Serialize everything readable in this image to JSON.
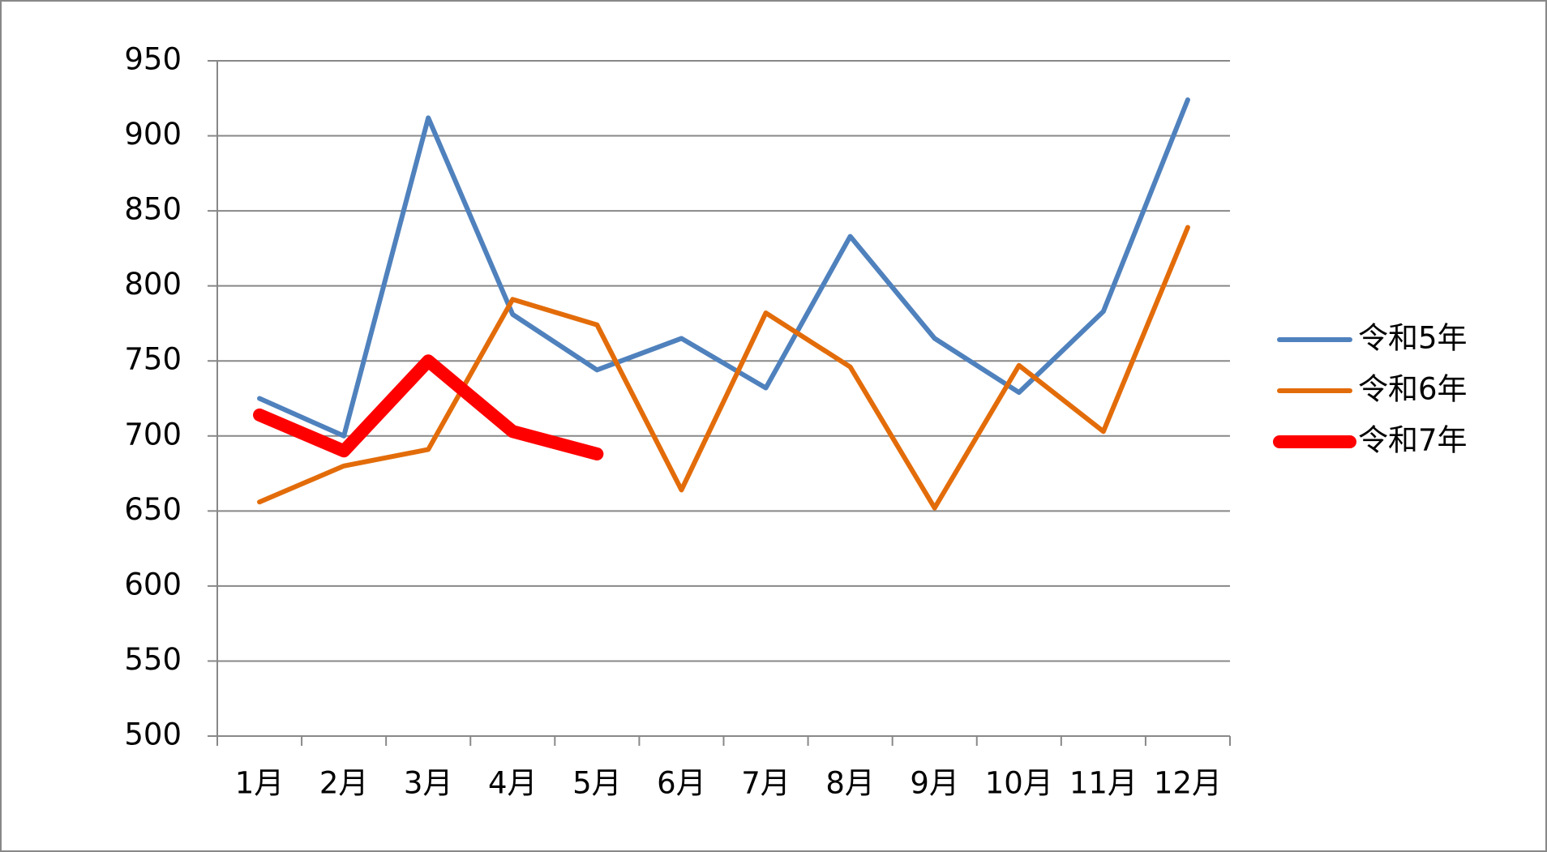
{
  "chart_data": {
    "type": "line",
    "categories": [
      "1月",
      "2月",
      "3月",
      "4月",
      "5月",
      "6月",
      "7月",
      "8月",
      "9月",
      "10月",
      "11月",
      "12月"
    ],
    "series": [
      {
        "name": "令和5年",
        "color": "#4f81bd",
        "width": 6,
        "values": [
          725,
          700,
          912,
          781,
          744,
          765,
          732,
          833,
          765,
          729,
          783,
          924
        ]
      },
      {
        "name": "令和6年",
        "color": "#e36c0a",
        "width": 6,
        "values": [
          656,
          680,
          691,
          791,
          774,
          664,
          782,
          746,
          652,
          747,
          703,
          839
        ]
      },
      {
        "name": "令和7年",
        "color": "#ff0000",
        "width": 16,
        "values": [
          714,
          690,
          750,
          703,
          688,
          null,
          null,
          null,
          null,
          null,
          null,
          null
        ]
      }
    ],
    "ylim": [
      500,
      950
    ],
    "yticks": [
      500,
      550,
      600,
      650,
      700,
      750,
      800,
      850,
      900,
      950
    ],
    "grid": true,
    "legend": "right"
  }
}
